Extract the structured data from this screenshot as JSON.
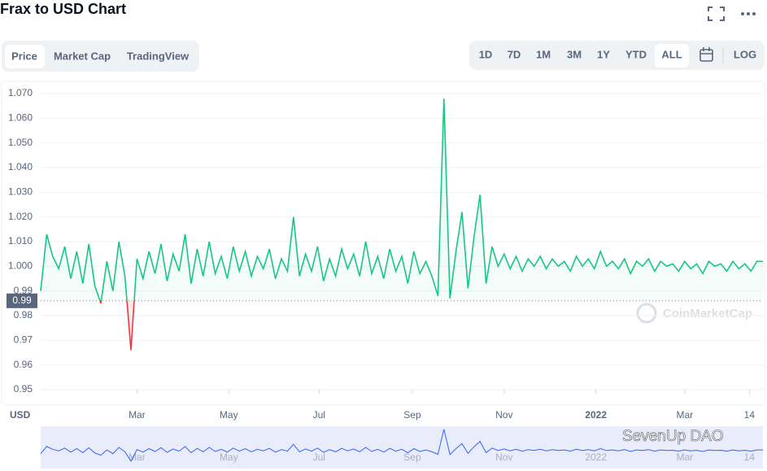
{
  "ui": {
    "title": "Frax to USD Chart",
    "tabs": [
      "Price",
      "Market Cap",
      "TradingView"
    ],
    "ranges": [
      "1D",
      "7D",
      "1M",
      "3M",
      "1Y",
      "YTD",
      "ALL"
    ],
    "log": "LOG",
    "currency": "USD",
    "watermark": "CoinMarketCap",
    "credit": "SevenUp DAO"
  },
  "chart_data": {
    "type": "line",
    "x": [
      0,
      4,
      8,
      12,
      16,
      20,
      24,
      28,
      32,
      36,
      40,
      44,
      48,
      52,
      56,
      60,
      64,
      68,
      72,
      76,
      80,
      84,
      88,
      92,
      96,
      100,
      104,
      108,
      112,
      116,
      120,
      124,
      128,
      132,
      136,
      140,
      144,
      148,
      152,
      156,
      160,
      164,
      168,
      172,
      176,
      180,
      184,
      188,
      192,
      196,
      200,
      204,
      208,
      212,
      216,
      220,
      224,
      228,
      232,
      236,
      240,
      244,
      248,
      252,
      256,
      260,
      264,
      268,
      272,
      276,
      280,
      284,
      288,
      292,
      296,
      300,
      304,
      308,
      312,
      316,
      320,
      324,
      328,
      332,
      336,
      340,
      344,
      348,
      352,
      356,
      360,
      364,
      368,
      372,
      376,
      380,
      384,
      388,
      392,
      396,
      400,
      404,
      408,
      412,
      416,
      420,
      424,
      428,
      432,
      436,
      440,
      444,
      448,
      452,
      456,
      460,
      464,
      468,
      472,
      476,
      480
    ],
    "series": [
      {
        "name": "Price",
        "color": "#16c784",
        "values": [
          0.99,
          1.013,
          1.004,
          0.999,
          1.008,
          0.995,
          1.006,
          0.993,
          1.009,
          0.992,
          0.985,
          1.002,
          0.99,
          1.01,
          0.996,
          0.966,
          1.003,
          0.995,
          1.006,
          0.997,
          1.009,
          0.994,
          1.005,
          0.998,
          1.013,
          0.993,
          1.007,
          0.996,
          1.01,
          0.997,
          1.004,
          0.995,
          1.008,
          0.998,
          1.006,
          0.996,
          1.004,
          0.999,
          1.007,
          0.995,
          1.003,
          0.998,
          1.02,
          0.996,
          1.005,
          0.998,
          1.008,
          0.994,
          1.003,
          0.996,
          1.007,
          0.999,
          1.005,
          0.996,
          1.01,
          0.997,
          1.004,
          0.995,
          1.007,
          0.998,
          1.004,
          0.993,
          1.006,
          0.997,
          1.002,
          0.996,
          0.988,
          1.068,
          0.987,
          1.006,
          1.022,
          0.991,
          1.012,
          1.029,
          0.993,
          1.008,
          1.0,
          1.005,
          0.999,
          1.004,
          0.998,
          1.003,
          1.0,
          1.004,
          0.999,
          1.003,
          1.0,
          1.002,
          0.998,
          1.004,
          1.0,
          1.003,
          0.999,
          1.006,
          1.0,
          1.002,
          0.999,
          1.003,
          0.997,
          1.002,
          1.0,
          1.003,
          0.998,
          1.002,
          1.0,
          1.001,
          0.998,
          1.002,
          0.999,
          1.001,
          0.997,
          1.002,
          1.0,
          1.001,
          0.998,
          1.002,
          0.999,
          1.001,
          0.998,
          1.002,
          1.002
        ]
      }
    ],
    "down_color": "#ea3943",
    "baseline": 0.986,
    "baseline_label": "0.99",
    "xlim": [
      0,
      480
    ],
    "xticks": [
      {
        "value": 64,
        "label": "Mar"
      },
      {
        "value": 125,
        "label": "May"
      },
      {
        "value": 185,
        "label": "Jul"
      },
      {
        "value": 247,
        "label": "Sep"
      },
      {
        "value": 308,
        "label": "Nov"
      },
      {
        "value": 369,
        "label": "2022"
      },
      {
        "value": 428,
        "label": "Mar"
      },
      {
        "value": 471,
        "label": "14"
      }
    ],
    "ylim": [
      0.95,
      1.07
    ],
    "yticks": [
      {
        "value": 0.95,
        "label": "0.95"
      },
      {
        "value": 0.96,
        "label": "0.96"
      },
      {
        "value": 0.97,
        "label": "0.97"
      },
      {
        "value": 0.98,
        "label": "0.98"
      },
      0.99,
      {
        "value": 1.0,
        "label": "1.000"
      },
      {
        "value": 1.01,
        "label": "1.010"
      },
      {
        "value": 1.02,
        "label": "1.020"
      },
      {
        "value": 1.03,
        "label": "1.030"
      },
      {
        "value": 1.04,
        "label": "1.040"
      },
      {
        "value": 1.05,
        "label": "1.050"
      },
      {
        "value": 1.06,
        "label": "1.060"
      },
      {
        "value": 1.07,
        "label": "1.070"
      }
    ],
    "grid": true
  }
}
